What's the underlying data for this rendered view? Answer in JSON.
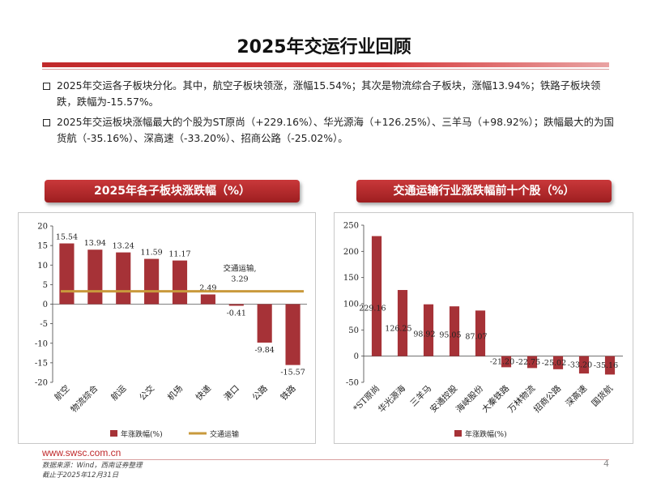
{
  "page": {
    "title": "2025年交运行业回顾",
    "bullets": [
      "2025年交运各子板块分化。其中，航空子板块领涨，涨幅15.54%；其次是物流综合子板块，涨幅13.94%；铁路子板块领跌，跌幅为-15.57%。",
      "2025年交运板块涨幅最大的个股为ST原尚（+229.16%）、华光源海（+126.25%）、三羊马（+98.92%）；跌幅最大的为国货航（-35.16%）、深高速（-33.20%）、招商公路（-25.02%）。"
    ],
    "footer_url": "www.swsc.com.cn",
    "footer_source": "数据来源：Wind，西南证券整理",
    "footer_date": "截止于2025年12月31日",
    "page_number": "4"
  },
  "colors": {
    "bar": "#a63237",
    "line": "#c99a3c",
    "accent": "#c0292b"
  },
  "chart_data": [
    {
      "type": "bar",
      "panel_title": "2025年各子板块涨跌幅（%）",
      "categories": [
        "航空",
        "物流综合",
        "航运",
        "公交",
        "机场",
        "快递",
        "港口",
        "公路",
        "铁路"
      ],
      "series": [
        {
          "name": "年涨跌幅(%)",
          "values": [
            15.54,
            13.94,
            13.24,
            11.59,
            11.17,
            2.49,
            -0.41,
            -9.84,
            -15.57
          ]
        }
      ],
      "reference_line": {
        "name": "交通运输",
        "value": 3.29,
        "label": "交通运输,",
        "value_label": "3.29"
      },
      "ylim": [
        -20,
        20
      ],
      "yticks": [
        20,
        15,
        10,
        5,
        0,
        -5,
        -10,
        -15,
        -20
      ],
      "legend_position": "bottom"
    },
    {
      "type": "bar",
      "panel_title": "交通运输行业涨跌幅前十个股（%）",
      "categories": [
        "*ST原尚",
        "华光源海",
        "三羊马",
        "安通控股",
        "海峡股份",
        "大秦铁路",
        "万林物流",
        "招商公路",
        "深高速",
        "国货航"
      ],
      "series": [
        {
          "name": "年涨跌幅(%)",
          "values": [
            229.16,
            126.25,
            98.92,
            95.05,
            87.07,
            -21.2,
            -22.75,
            -25.02,
            -33.2,
            -35.16
          ]
        }
      ],
      "ylim": [
        -50,
        250
      ],
      "yticks": [
        250,
        200,
        150,
        100,
        50,
        0,
        -50
      ],
      "legend_position": "bottom"
    }
  ]
}
